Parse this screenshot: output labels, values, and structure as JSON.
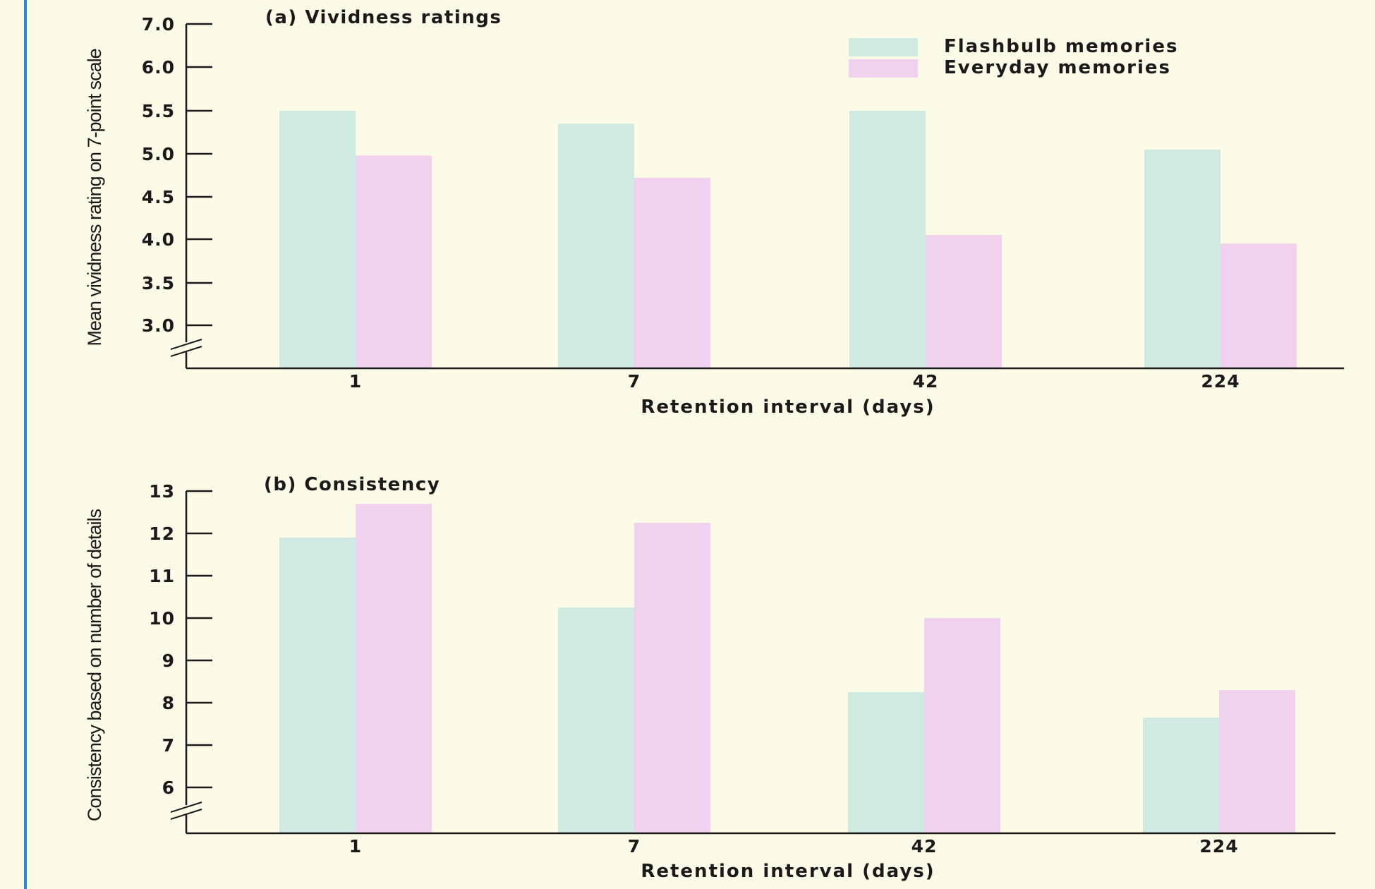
{
  "colors": {
    "background": "#fcfbe8",
    "border_accent": "#2b86d6",
    "flashbulb": "#cfeae0",
    "everyday": "#f1d2ee",
    "axis": "#1a1a1a"
  },
  "legend": {
    "entries": [
      {
        "label": "Flashbulb memories",
        "color": "#cfeae0"
      },
      {
        "label": "Everyday memories",
        "color": "#f1d2ee"
      }
    ],
    "placement": "top-right"
  },
  "chart_data": [
    {
      "type": "bar",
      "title": "(a) Vividness ratings",
      "xlabel": "Retention interval (days)",
      "ylabel": "Mean vividness rating on 7-point scale",
      "categories": [
        "1",
        "7",
        "42",
        "224"
      ],
      "y_ticks": [
        "7.0",
        "6.0",
        "5.5",
        "5.0",
        "4.5",
        "4.0",
        "3.5",
        "3.0"
      ],
      "ylim": [
        2.5,
        7.0
      ],
      "axis_break": true,
      "series": [
        {
          "name": "Flashbulb memories",
          "values": [
            5.5,
            5.35,
            5.5,
            5.05
          ]
        },
        {
          "name": "Everyday memories",
          "values": [
            4.98,
            4.72,
            4.05,
            3.95
          ]
        }
      ]
    },
    {
      "type": "bar",
      "title": "(b) Consistency",
      "xlabel": "Retention interval (days)",
      "ylabel": "Consistency based on number of details",
      "categories": [
        "1",
        "7",
        "42",
        "224"
      ],
      "y_ticks": [
        "13",
        "12",
        "11",
        "10",
        "9",
        "8",
        "7",
        "6"
      ],
      "ylim": [
        5,
        13
      ],
      "axis_break": true,
      "series": [
        {
          "name": "Flashbulb memories",
          "values": [
            11.9,
            10.25,
            8.25,
            7.65
          ]
        },
        {
          "name": "Everyday memories",
          "values": [
            12.7,
            12.25,
            10.0,
            8.3
          ]
        }
      ]
    }
  ]
}
